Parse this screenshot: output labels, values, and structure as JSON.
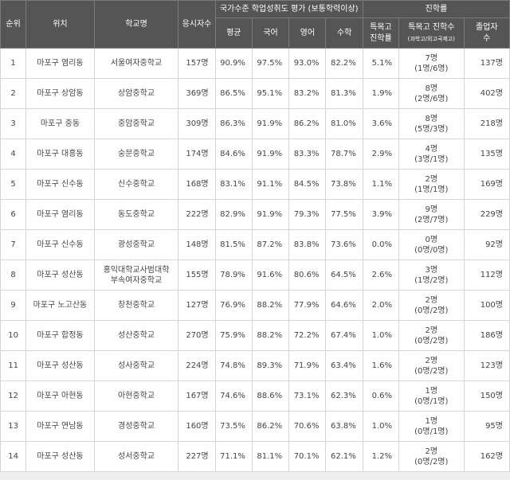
{
  "header": {
    "rank": "순위",
    "location": "위치",
    "school": "학교명",
    "test_takers": "응시자수",
    "national_group": "국가수준 학업성취도 평가 (보통학력이상)",
    "avg": "평균",
    "korean": "국어",
    "english": "영어",
    "math": "수학",
    "advancement_group": "진학률",
    "special_rate_1": "특목고",
    "special_rate_2": "진학률",
    "special_count": "특목고 진학수",
    "special_count_sub": "(과학고/외고국제고)",
    "graduates_1": "졸업자",
    "graduates_2": "수"
  },
  "rows": [
    {
      "rank": "1",
      "location": "마포구 염리동",
      "school_1": "서울여자중학교",
      "school_2": "",
      "takers": "157명",
      "avg": "90.9%",
      "kor": "97.5%",
      "eng": "93.0%",
      "math": "82.2%",
      "rate": "5.1%",
      "count_1": "7명",
      "count_2": "(1명/6명)",
      "grads": "137명"
    },
    {
      "rank": "2",
      "location": "마포구 상암동",
      "school_1": "상암중학교",
      "school_2": "",
      "takers": "369명",
      "avg": "86.5%",
      "kor": "95.1%",
      "eng": "83.2%",
      "math": "81.3%",
      "rate": "1.9%",
      "count_1": "8명",
      "count_2": "(2명/6명)",
      "grads": "402명"
    },
    {
      "rank": "3",
      "location": "마포구 중동",
      "school_1": "중암중학교",
      "school_2": "",
      "takers": "309명",
      "avg": "86.3%",
      "kor": "91.9%",
      "eng": "86.2%",
      "math": "81.0%",
      "rate": "3.6%",
      "count_1": "8명",
      "count_2": "(5명/3명)",
      "grads": "218명"
    },
    {
      "rank": "4",
      "location": "마포구 대흥동",
      "school_1": "숭문중학교",
      "school_2": "",
      "takers": "174명",
      "avg": "84.6%",
      "kor": "91.9%",
      "eng": "83.3%",
      "math": "78.7%",
      "rate": "2.9%",
      "count_1": "4명",
      "count_2": "(3명/1명)",
      "grads": "135명"
    },
    {
      "rank": "5",
      "location": "마포구 신수동",
      "school_1": "신수중학교",
      "school_2": "",
      "takers": "168명",
      "avg": "83.1%",
      "kor": "91.1%",
      "eng": "84.5%",
      "math": "73.8%",
      "rate": "1.1%",
      "count_1": "2명",
      "count_2": "(1명/1명)",
      "grads": "169명"
    },
    {
      "rank": "6",
      "location": "마포구 염리동",
      "school_1": "동도중학교",
      "school_2": "",
      "takers": "222명",
      "avg": "82.9%",
      "kor": "91.9%",
      "eng": "79.3%",
      "math": "77.5%",
      "rate": "3.9%",
      "count_1": "9명",
      "count_2": "(2명/7명)",
      "grads": "229명"
    },
    {
      "rank": "7",
      "location": "마포구 신수동",
      "school_1": "광성중학교",
      "school_2": "",
      "takers": "148명",
      "avg": "81.5%",
      "kor": "87.2%",
      "eng": "83.8%",
      "math": "73.6%",
      "rate": "0.0%",
      "count_1": "0명",
      "count_2": "(0명/0명)",
      "grads": "92명"
    },
    {
      "rank": "8",
      "location": "마포구 성산동",
      "school_1": "홍익대학교사범대학",
      "school_2": "부속여자중학교",
      "takers": "155명",
      "avg": "78.9%",
      "kor": "91.6%",
      "eng": "80.6%",
      "math": "64.5%",
      "rate": "2.6%",
      "count_1": "3명",
      "count_2": "(1명/2명)",
      "grads": "112명"
    },
    {
      "rank": "9",
      "location": "마포구 노고산동",
      "school_1": "창천중학교",
      "school_2": "",
      "takers": "127명",
      "avg": "76.9%",
      "kor": "88.2%",
      "eng": "77.9%",
      "math": "64.6%",
      "rate": "2.0%",
      "count_1": "2명",
      "count_2": "(0명/2명)",
      "grads": "100명"
    },
    {
      "rank": "10",
      "location": "마포구 합정동",
      "school_1": "성산중학교",
      "school_2": "",
      "takers": "270명",
      "avg": "75.9%",
      "kor": "88.2%",
      "eng": "72.2%",
      "math": "67.4%",
      "rate": "1.0%",
      "count_1": "2명",
      "count_2": "(0명/2명)",
      "grads": "186명"
    },
    {
      "rank": "11",
      "location": "마포구 성산동",
      "school_1": "성사중학교",
      "school_2": "",
      "takers": "224명",
      "avg": "74.8%",
      "kor": "89.3%",
      "eng": "71.9%",
      "math": "63.4%",
      "rate": "1.6%",
      "count_1": "2명",
      "count_2": "(0명/2명)",
      "grads": "123명"
    },
    {
      "rank": "12",
      "location": "마포구 아현동",
      "school_1": "아현중학교",
      "school_2": "",
      "takers": "167명",
      "avg": "74.6%",
      "kor": "88.6%",
      "eng": "73.1%",
      "math": "62.3%",
      "rate": "0.6%",
      "count_1": "1명",
      "count_2": "(0명/1명)",
      "grads": "150명"
    },
    {
      "rank": "13",
      "location": "마포구 연남동",
      "school_1": "경성중학교",
      "school_2": "",
      "takers": "160명",
      "avg": "73.5%",
      "kor": "86.2%",
      "eng": "70.6%",
      "math": "63.8%",
      "rate": "1.0%",
      "count_1": "1명",
      "count_2": "(0명/1명)",
      "grads": "95명"
    },
    {
      "rank": "14",
      "location": "마포구 성산동",
      "school_1": "성서중학교",
      "school_2": "",
      "takers": "227명",
      "avg": "71.1%",
      "kor": "81.1%",
      "eng": "70.1%",
      "math": "62.1%",
      "rate": "1.2%",
      "count_1": "2명",
      "count_2": "(0명/2명)",
      "grads": "162명"
    }
  ]
}
